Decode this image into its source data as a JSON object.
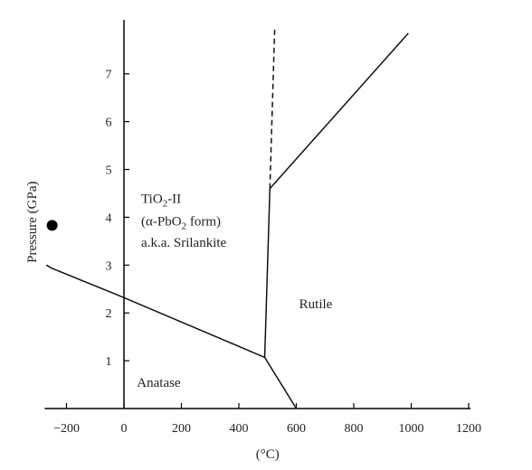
{
  "chart_data": {
    "type": "line",
    "xlabel": "(°C)",
    "ylabel": "Pressure (GPa)",
    "xlim": [
      -270,
      1200
    ],
    "ylim": [
      0,
      8.1
    ],
    "x_ticks": [
      -200,
      0,
      200,
      400,
      600,
      800,
      1000,
      1200
    ],
    "x_tick_labels": [
      "−200",
      "0",
      "200",
      "400",
      "600",
      "800",
      "1000",
      "1200"
    ],
    "y_ticks": [
      1,
      2,
      3,
      4,
      5,
      6,
      7
    ],
    "y_tick_labels": [
      "1",
      "2",
      "3",
      "4",
      "5",
      "6",
      "7"
    ],
    "grid": false,
    "series": [
      {
        "style": "solid",
        "points": [
          [
            -270,
            3.0
          ],
          [
            -250,
            2.93
          ],
          [
            0,
            2.32
          ],
          [
            490,
            1.07
          ]
        ]
      },
      {
        "style": "solid",
        "points": [
          [
            490,
            1.07
          ],
          [
            600,
            0.0
          ]
        ]
      },
      {
        "style": "solid",
        "points": [
          [
            490,
            1.07
          ],
          [
            508,
            4.6
          ]
        ]
      },
      {
        "style": "solid",
        "points": [
          [
            508,
            4.6
          ],
          [
            990,
            7.85
          ]
        ]
      },
      {
        "style": "dashed",
        "points": [
          [
            508,
            4.6
          ],
          [
            525,
            8.0
          ]
        ]
      }
    ],
    "marker": {
      "x": -250,
      "y": 3.83
    },
    "region_labels": {
      "tio2_line1": {
        "main": "TiO",
        "sub": "2",
        "rest": "-II",
        "x": 60,
        "y": 4.3
      },
      "tio2_line2": {
        "pre": "(α-PbO",
        "sub": "2",
        "rest": " form)",
        "x": 60,
        "y": 3.83
      },
      "tio2_line3": {
        "text": "a.k.a. Srilankite",
        "x": 60,
        "y": 3.38
      },
      "rutile": {
        "text": "Rutile",
        "x": 610,
        "y": 2.1
      },
      "anatase": {
        "text": "Anatase",
        "x": 45,
        "y": 0.45
      }
    }
  }
}
